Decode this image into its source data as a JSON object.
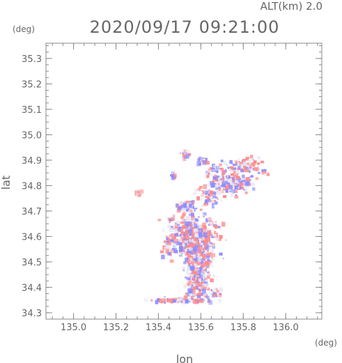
{
  "header": {
    "alt_label": "ALT(km)  2.0",
    "datetime": "2020/09/17 09:21:00",
    "y_unit": "(deg)",
    "x_unit": "(deg)"
  },
  "chart_data": {
    "type": "scatter",
    "title": "2020/09/17 09:21:00",
    "subtitle": "ALT(km)  2.0",
    "xlabel": "lon",
    "ylabel": "lat",
    "xunit": "(deg)",
    "yunit": "(deg)",
    "xlim": [
      134.87,
      136.17
    ],
    "ylim": [
      34.275,
      35.36
    ],
    "xticks": [
      135.0,
      135.2,
      135.4,
      135.6,
      135.8,
      136.0
    ],
    "xtick_labels": [
      "135.0",
      "135.2",
      "135.4",
      "135.6",
      "135.8",
      "136.0"
    ],
    "yticks": [
      34.3,
      34.4,
      34.5,
      34.6,
      34.7,
      34.8,
      34.9,
      35.0,
      35.1,
      35.2,
      35.3
    ],
    "ytick_labels": [
      "34.3",
      "34.4",
      "34.5",
      "34.6",
      "34.7",
      "34.8",
      "34.9",
      "35.0",
      "35.1",
      "35.2",
      "35.3"
    ],
    "grid": false,
    "colors": {
      "positive": "#ff8c8c",
      "negative": "#8c8cff",
      "neutral": "#e8e8f4",
      "axis": "#888888"
    },
    "clusters": [
      {
        "lon": 135.57,
        "lat": 34.6,
        "sd_lon": 0.055,
        "sd_lat": 0.045,
        "n": 520
      },
      {
        "lon": 135.59,
        "lat": 34.48,
        "sd_lon": 0.03,
        "sd_lat": 0.05,
        "n": 240
      },
      {
        "lon": 135.59,
        "lat": 34.4,
        "sd_lon": 0.022,
        "sd_lat": 0.025,
        "n": 90
      },
      {
        "lon": 135.53,
        "lat": 34.72,
        "sd_lon": 0.02,
        "sd_lat": 0.012,
        "n": 70
      },
      {
        "lon": 135.76,
        "lat": 34.81,
        "sd_lon": 0.045,
        "sd_lat": 0.022,
        "n": 170
      },
      {
        "lon": 135.8,
        "lat": 34.88,
        "sd_lon": 0.04,
        "sd_lat": 0.014,
        "n": 90
      },
      {
        "lon": 135.68,
        "lat": 34.84,
        "sd_lon": 0.03,
        "sd_lat": 0.025,
        "n": 60
      },
      {
        "lon": 135.64,
        "lat": 34.76,
        "sd_lon": 0.03,
        "sd_lat": 0.02,
        "n": 60
      },
      {
        "lon": 135.53,
        "lat": 34.92,
        "sd_lon": 0.012,
        "sd_lat": 0.008,
        "n": 25
      },
      {
        "lon": 135.61,
        "lat": 34.9,
        "sd_lon": 0.012,
        "sd_lat": 0.012,
        "n": 20
      },
      {
        "lon": 135.52,
        "lat": 34.35,
        "sd_lon": 0.07,
        "sd_lat": 0.005,
        "n": 70
      },
      {
        "lon": 135.68,
        "lat": 34.38,
        "sd_lon": 0.012,
        "sd_lat": 0.01,
        "n": 20
      },
      {
        "lon": 135.44,
        "lat": 34.57,
        "sd_lon": 0.012,
        "sd_lat": 0.02,
        "n": 25
      },
      {
        "lon": 135.47,
        "lat": 34.84,
        "sd_lon": 0.008,
        "sd_lat": 0.01,
        "n": 10
      },
      {
        "lon": 135.3,
        "lat": 34.77,
        "sd_lon": 0.008,
        "sd_lat": 0.006,
        "n": 8
      },
      {
        "lon": 135.9,
        "lat": 34.85,
        "sd_lon": 0.01,
        "sd_lat": 0.005,
        "n": 8
      }
    ]
  }
}
